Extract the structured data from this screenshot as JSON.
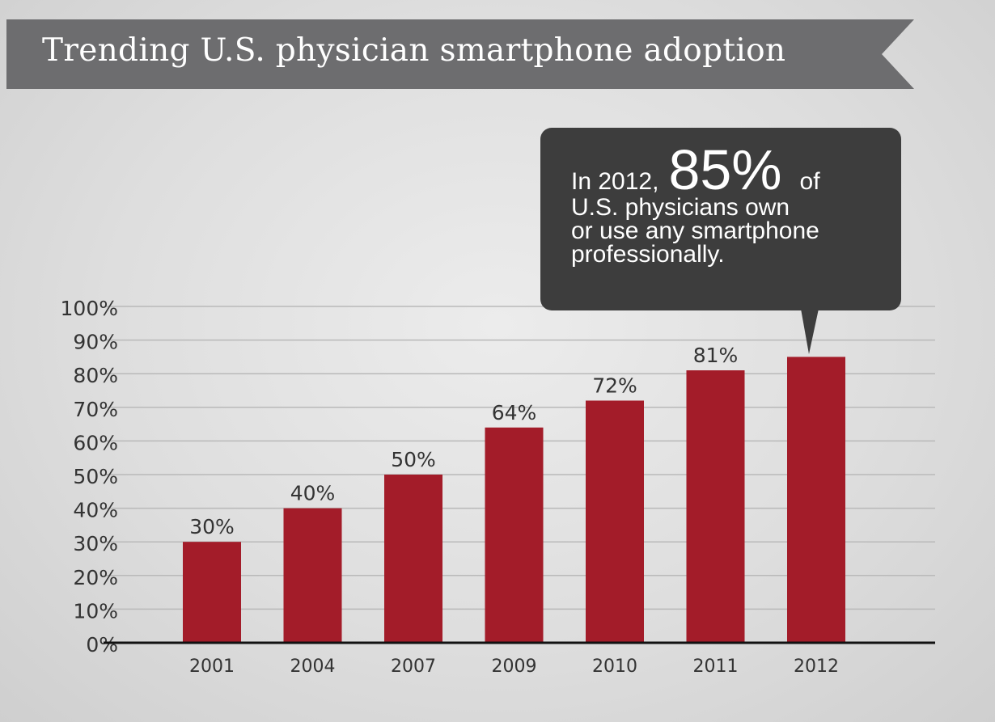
{
  "title": "Trending U.S. physician smartphone adoption",
  "callout": {
    "prefix": "In 2012,",
    "highlight": "85%",
    "suffix": "of",
    "lines": [
      "U.S. physicians own",
      "or use any smartphone",
      "professionally."
    ]
  },
  "colors": {
    "bar": "#a31c29",
    "banner": "#6d6d6f",
    "callout": "#3d3d3d",
    "gridline": "#b9b9b9",
    "axis": "#111111",
    "text": "#333333"
  },
  "chart_data": {
    "type": "bar",
    "categories": [
      "2001",
      "2004",
      "2007",
      "2009",
      "2010",
      "2011",
      "2012"
    ],
    "values": [
      30,
      40,
      50,
      64,
      72,
      81,
      85
    ],
    "data_labels": [
      "30%",
      "40%",
      "50%",
      "64%",
      "72%",
      "81%",
      ""
    ],
    "yticks": [
      0,
      10,
      20,
      30,
      40,
      50,
      60,
      70,
      80,
      90,
      100
    ],
    "ytick_labels": [
      "0%",
      "10%",
      "20%",
      "30%",
      "40%",
      "50%",
      "60%",
      "70%",
      "80%",
      "90%",
      "100%"
    ],
    "ylim": [
      0,
      100
    ],
    "title": "Trending U.S. physician smartphone adoption",
    "xlabel": "",
    "ylabel": "",
    "grid": true,
    "legend": "none"
  }
}
